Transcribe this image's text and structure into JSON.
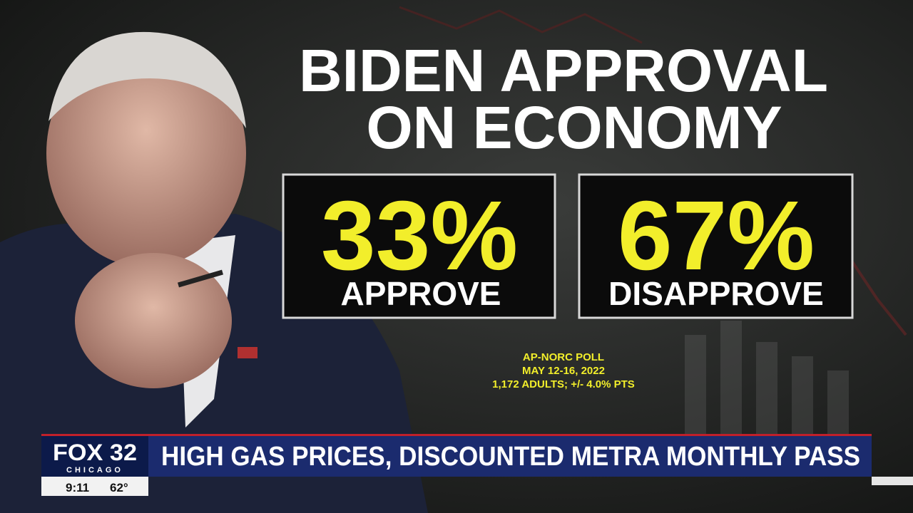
{
  "graphic": {
    "title_lines": [
      "BIDEN APPROVAL",
      "ON ECONOMY"
    ],
    "stats": [
      {
        "value": "33%",
        "label": "APPROVE"
      },
      {
        "value": "67%",
        "label": "DISAPPROVE"
      }
    ],
    "source_lines": [
      "AP-NORC POLL",
      "MAY 12-16, 2022",
      "1,172 ADULTS; +/- 4.0% PTS"
    ]
  },
  "lower_third": {
    "station": "FOX 32",
    "city": "CHICAGO",
    "time": "9:11",
    "temperature": "62°",
    "headline": "HIGH GAS PRICES, DISCOUNTED METRA MONTHLY PASS"
  }
}
